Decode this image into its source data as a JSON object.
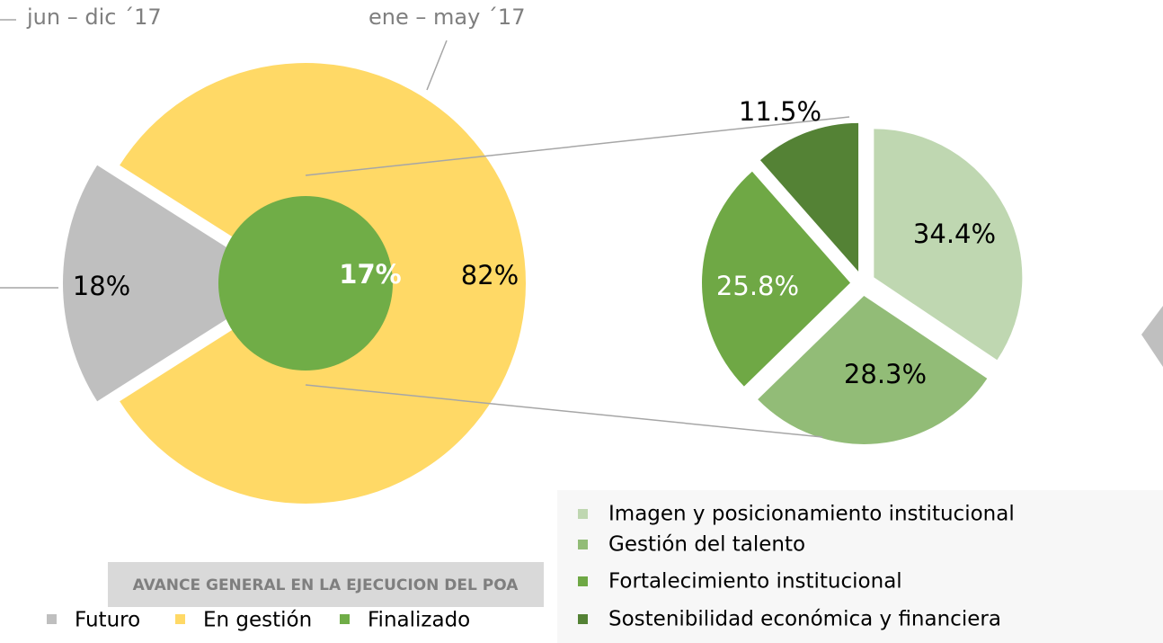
{
  "chart_data": [
    {
      "type": "donut-pie",
      "title": "AVANCE GENERAL EN LA EJECUCION DEL POA",
      "annotations": [
        "jun – dic ´17",
        "ene – may ´17"
      ],
      "categories": [
        "Futuro",
        "En gestión"
      ],
      "values": [
        18,
        82
      ],
      "value_labels": [
        "18%",
        "82%"
      ],
      "colors": [
        "#bfbfbf",
        "#ffd966"
      ],
      "inner": {
        "name": "Finalizado",
        "value": 17,
        "value_label": "17%",
        "color": "#70ad47"
      }
    },
    {
      "type": "pie",
      "categories": [
        "Imagen y posicionamiento institucional",
        "Gestión del talento",
        "Fortalecimiento institucional",
        "Sostenibilidad económica y financiera"
      ],
      "values": [
        34.4,
        28.3,
        25.8,
        11.5
      ],
      "value_labels": [
        "34.4%",
        "28.3%",
        "25.8%",
        "11.5%"
      ],
      "colors": [
        "#bfd7b1",
        "#92bc77",
        "#6fa845",
        "#548235"
      ]
    }
  ]
}
